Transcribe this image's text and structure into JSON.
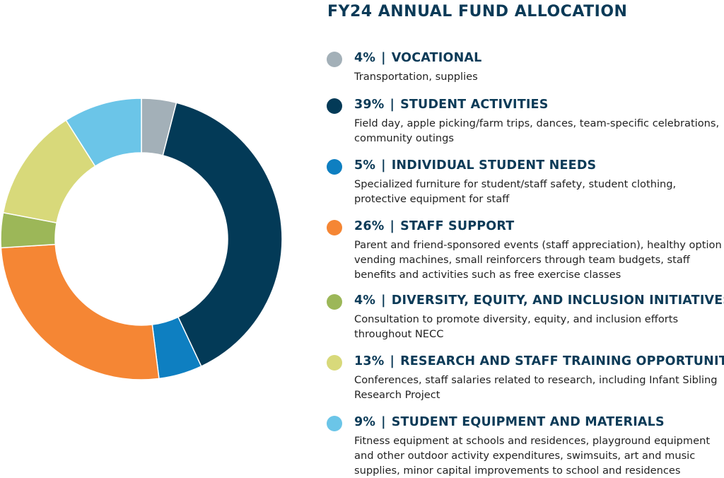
{
  "chart_data": {
    "type": "pie",
    "title": "FY24 ANNUAL FUND ALLOCATION",
    "slices": [
      {
        "percent_label": "4%",
        "value": 4,
        "name": "VOCATIONAL",
        "description": "Transportation, supplies",
        "color": "#a3b0b8"
      },
      {
        "percent_label": "39%",
        "value": 39,
        "name": "STUDENT ACTIVITIES",
        "description": "Field day, apple picking/farm trips, dances, team-specific celebrations, community outings",
        "color": "#033a57"
      },
      {
        "percent_label": "5%",
        "value": 5,
        "name": "INDIVIDUAL STUDENT NEEDS",
        "description": "Specialized furniture for student/staff safety, student clothing, protective equipment for staff",
        "color": "#0e7fc1"
      },
      {
        "percent_label": "26%",
        "value": 26,
        "name": "STAFF SUPPORT",
        "description": "Parent and friend-sponsored events (staff appreciation), healthy option vending machines, small reinforcers through team budgets, staff benefits and activities such as free exercise classes",
        "color": "#f58634"
      },
      {
        "percent_label": "4%",
        "value": 4,
        "name": "DIVERSITY, EQUITY, AND INCLUSION INITIATIVES",
        "description": "Consultation to promote diversity, equity, and inclusion efforts throughout NECC",
        "color": "#9cb758"
      },
      {
        "percent_label": "13%",
        "value": 13,
        "name": "RESEARCH AND STAFF TRAINING OPPORTUNITIES",
        "description": "Conferences, staff salaries related to research, including Infant Sibling Research Project",
        "color": "#d8d97a"
      },
      {
        "percent_label": "9%",
        "value": 9,
        "name": "STUDENT EQUIPMENT AND MATERIALS",
        "description": "Fitness equipment at schools and residences, playground equipment and other outdoor activity expenditures, swimsuits, art and music supplies, minor capital  improvements to school and residences",
        "color": "#6bc5e8"
      }
    ]
  }
}
